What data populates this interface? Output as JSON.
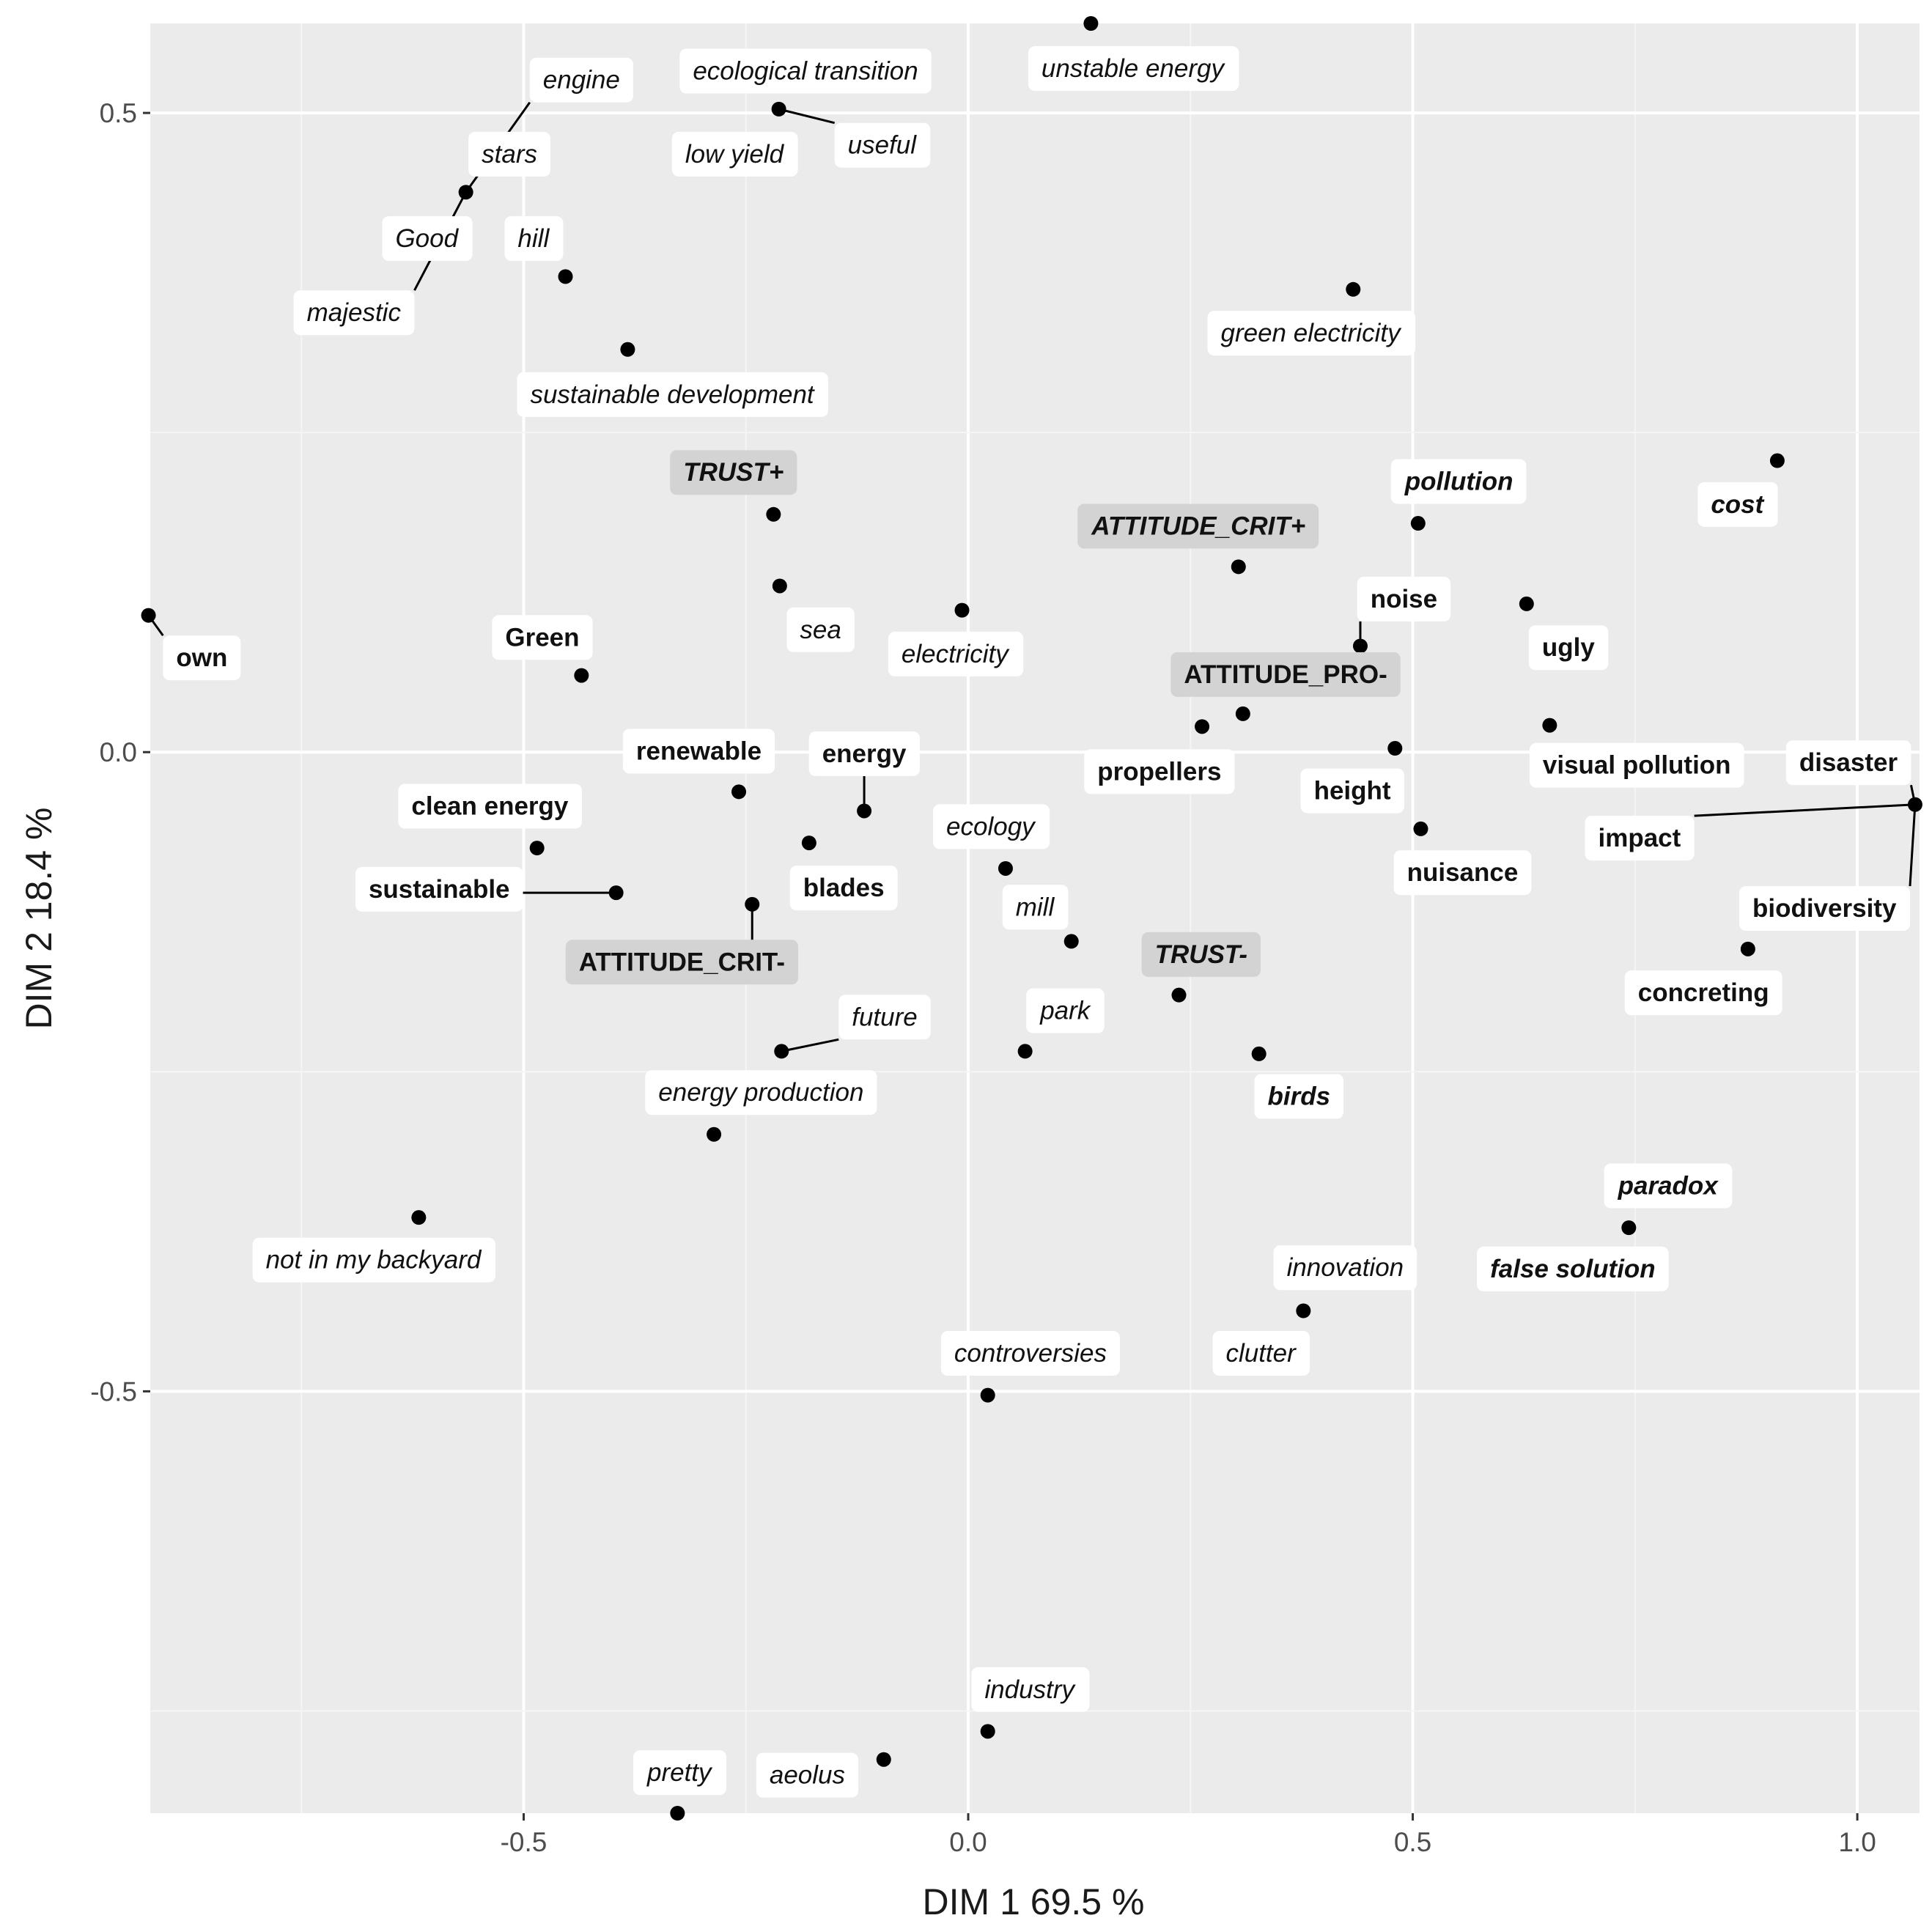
{
  "colors": {
    "panel": "#ebebeb",
    "grid_major": "#ffffff",
    "grid_minor": "#f5f5f5",
    "point": "#000000",
    "label_box": "#ffffff",
    "label_box_modality": "#d3d3d3"
  },
  "chart_data": {
    "type": "scatter",
    "xlabel": "DIM 1   69.5 %",
    "ylabel": "DIM 2   18.4 %",
    "xlim": [
      -0.92,
      1.07
    ],
    "ylim": [
      -0.83,
      0.57
    ],
    "grid": true,
    "x_ticks": [
      {
        "value": -0.5,
        "label": "-0.5"
      },
      {
        "value": 0.0,
        "label": "0.0"
      },
      {
        "value": 0.5,
        "label": "0.5"
      },
      {
        "value": 1.0,
        "label": "1.0"
      }
    ],
    "y_ticks": [
      {
        "value": 0.5,
        "label": "0.5"
      },
      {
        "value": 0.0,
        "label": "0.0"
      },
      {
        "value": -0.5,
        "label": "-0.5"
      }
    ],
    "points": [
      {
        "text": "engine",
        "x": -0.565,
        "y": 0.438,
        "lx": -0.435,
        "ly": 0.526,
        "style": "italic",
        "seg": true
      },
      {
        "text": "stars",
        "x": -0.565,
        "y": 0.438,
        "lx": -0.516,
        "ly": 0.468,
        "style": "italic"
      },
      {
        "text": "Good",
        "x": -0.565,
        "y": 0.438,
        "lx": -0.609,
        "ly": 0.402,
        "style": "italic"
      },
      {
        "text": "majestic",
        "x": -0.565,
        "y": 0.438,
        "lx": -0.691,
        "ly": 0.344,
        "style": "italic",
        "seg": true
      },
      {
        "text": "hill",
        "x": -0.453,
        "y": 0.372,
        "lx": -0.489,
        "ly": 0.402,
        "style": "italic"
      },
      {
        "text": "sustainable development",
        "x": -0.383,
        "y": 0.315,
        "lx": -0.333,
        "ly": 0.28,
        "style": "italic"
      },
      {
        "text": "ecological transition",
        "x": -0.213,
        "y": 0.503,
        "lx": -0.183,
        "ly": 0.533,
        "style": "italic"
      },
      {
        "text": "low yield",
        "x": -0.213,
        "y": 0.503,
        "lx": -0.263,
        "ly": 0.468,
        "style": "italic"
      },
      {
        "text": "useful",
        "x": -0.213,
        "y": 0.503,
        "lx": -0.097,
        "ly": 0.475,
        "style": "italic",
        "seg": true
      },
      {
        "text": "unstable energy",
        "x": 0.138,
        "y": 0.57,
        "lx": 0.185,
        "ly": 0.535,
        "style": "italic"
      },
      {
        "text": "green electricity",
        "x": 0.433,
        "y": 0.362,
        "lx": 0.385,
        "ly": 0.328,
        "style": "italic"
      },
      {
        "text": "TRUST+",
        "x": -0.219,
        "y": 0.186,
        "lx": -0.264,
        "ly": 0.219,
        "style": "bolditalic",
        "modality": true
      },
      {
        "text": "sea",
        "x": -0.212,
        "y": 0.13,
        "lx": -0.166,
        "ly": 0.096,
        "style": "italic"
      },
      {
        "text": "electricity",
        "x": -0.007,
        "y": 0.111,
        "lx": -0.015,
        "ly": 0.077,
        "style": "italic"
      },
      {
        "text": "ATTITUDE_CRIT+",
        "x": 0.304,
        "y": 0.145,
        "lx": 0.259,
        "ly": 0.177,
        "style": "bolditalic",
        "modality": true
      },
      {
        "text": "pollution",
        "x": 0.506,
        "y": 0.179,
        "lx": 0.552,
        "ly": 0.212,
        "style": "bolditalic"
      },
      {
        "text": "cost",
        "x": 0.91,
        "y": 0.228,
        "lx": 0.865,
        "ly": 0.194,
        "style": "bolditalic"
      },
      {
        "text": "noise",
        "x": 0.441,
        "y": 0.083,
        "lx": 0.49,
        "ly": 0.12,
        "style": "bold",
        "seg": true
      },
      {
        "text": "ugly",
        "x": 0.628,
        "y": 0.116,
        "lx": 0.675,
        "ly": 0.082,
        "style": "bold"
      },
      {
        "text": "own",
        "x": -0.922,
        "y": 0.107,
        "lx": -0.862,
        "ly": 0.074,
        "style": "bold",
        "seg": true
      },
      {
        "text": "Green",
        "x": -0.435,
        "y": 0.06,
        "lx": -0.479,
        "ly": 0.09,
        "style": "bold"
      },
      {
        "text": "ATTITUDE_PRO-",
        "x": 0.309,
        "y": 0.03,
        "lx": 0.357,
        "ly": 0.061,
        "style": "bold",
        "modality": true
      },
      {
        "text": "propellers",
        "x": 0.263,
        "y": 0.02,
        "lx": 0.215,
        "ly": -0.015,
        "style": "bold"
      },
      {
        "text": "height",
        "x": 0.48,
        "y": 0.003,
        "lx": 0.432,
        "ly": -0.03,
        "style": "bold"
      },
      {
        "text": "visual pollution",
        "x": 0.654,
        "y": 0.021,
        "lx": 0.752,
        "ly": -0.01,
        "style": "bold"
      },
      {
        "text": "renewable",
        "x": -0.258,
        "y": -0.031,
        "lx": -0.303,
        "ly": 0.001,
        "style": "bold"
      },
      {
        "text": "energy",
        "x": -0.117,
        "y": -0.046,
        "lx": -0.117,
        "ly": -0.001,
        "style": "bold",
        "seg": true
      },
      {
        "text": "clean energy",
        "x": -0.485,
        "y": -0.075,
        "lx": -0.538,
        "ly": -0.042,
        "style": "bold"
      },
      {
        "text": "sustainable",
        "x": -0.396,
        "y": -0.11,
        "lx": -0.595,
        "ly": -0.107,
        "style": "bold",
        "seg": true
      },
      {
        "text": "blades",
        "x": -0.179,
        "y": -0.071,
        "lx": -0.14,
        "ly": -0.106,
        "style": "bold"
      },
      {
        "text": "ATTITUDE_CRIT-",
        "x": -0.243,
        "y": -0.119,
        "lx": -0.322,
        "ly": -0.164,
        "style": "bold",
        "modality": true,
        "seg": true
      },
      {
        "text": "ecology",
        "x": 0.042,
        "y": -0.091,
        "lx": 0.025,
        "ly": -0.058,
        "style": "italic"
      },
      {
        "text": "mill",
        "x": 0.116,
        "y": -0.148,
        "lx": 0.075,
        "ly": -0.121,
        "style": "italic"
      },
      {
        "text": "nuisance",
        "x": 0.509,
        "y": -0.06,
        "lx": 0.556,
        "ly": -0.094,
        "style": "bold"
      },
      {
        "text": "disaster",
        "x": 1.065,
        "y": -0.041,
        "lx": 0.99,
        "ly": -0.008,
        "style": "bold",
        "seg": true
      },
      {
        "text": "impact",
        "x": 1.065,
        "y": -0.041,
        "lx": 0.755,
        "ly": -0.067,
        "style": "bold",
        "seg": true
      },
      {
        "text": "biodiversity",
        "x": 1.065,
        "y": -0.041,
        "lx": 0.963,
        "ly": -0.122,
        "style": "bold",
        "seg": true
      },
      {
        "text": "concreting",
        "x": 0.877,
        "y": -0.154,
        "lx": 0.827,
        "ly": -0.188,
        "style": "bold"
      },
      {
        "text": "TRUST-",
        "x": 0.237,
        "y": -0.19,
        "lx": 0.262,
        "ly": -0.158,
        "style": "bolditalic",
        "modality": true
      },
      {
        "text": "birds",
        "x": 0.327,
        "y": -0.236,
        "lx": 0.372,
        "ly": -0.269,
        "style": "bolditalic"
      },
      {
        "text": "park",
        "x": 0.064,
        "y": -0.234,
        "lx": 0.109,
        "ly": -0.202,
        "style": "italic"
      },
      {
        "text": "future",
        "x": -0.21,
        "y": -0.234,
        "lx": -0.094,
        "ly": -0.207,
        "style": "italic",
        "seg": true
      },
      {
        "text": "energy production",
        "x": -0.286,
        "y": -0.299,
        "lx": -0.233,
        "ly": -0.266,
        "style": "italic"
      },
      {
        "text": "not in my backyard",
        "x": -0.618,
        "y": -0.364,
        "lx": -0.669,
        "ly": -0.397,
        "style": "italic"
      },
      {
        "text": "paradox",
        "x": 0.743,
        "y": -0.372,
        "lx": 0.787,
        "ly": -0.339,
        "style": "bolditalic"
      },
      {
        "text": "false solution",
        "x": 0.743,
        "y": -0.372,
        "lx": 0.68,
        "ly": -0.404,
        "style": "bolditalic"
      },
      {
        "text": "innovation",
        "x": 0.377,
        "y": -0.437,
        "lx": 0.424,
        "ly": -0.403,
        "style": "italic"
      },
      {
        "text": "clutter",
        "x": 0.377,
        "y": -0.437,
        "lx": 0.329,
        "ly": -0.47,
        "style": "italic"
      },
      {
        "text": "controversies",
        "x": 0.022,
        "y": -0.503,
        "lx": 0.07,
        "ly": -0.47,
        "style": "italic"
      },
      {
        "text": "industry",
        "x": 0.022,
        "y": -0.766,
        "lx": 0.069,
        "ly": -0.733,
        "style": "italic"
      },
      {
        "text": "aeolus",
        "x": -0.095,
        "y": -0.788,
        "lx": -0.181,
        "ly": -0.8,
        "style": "italic"
      },
      {
        "text": "pretty",
        "x": -0.327,
        "y": -0.83,
        "lx": -0.325,
        "ly": -0.798,
        "style": "italic"
      }
    ]
  }
}
